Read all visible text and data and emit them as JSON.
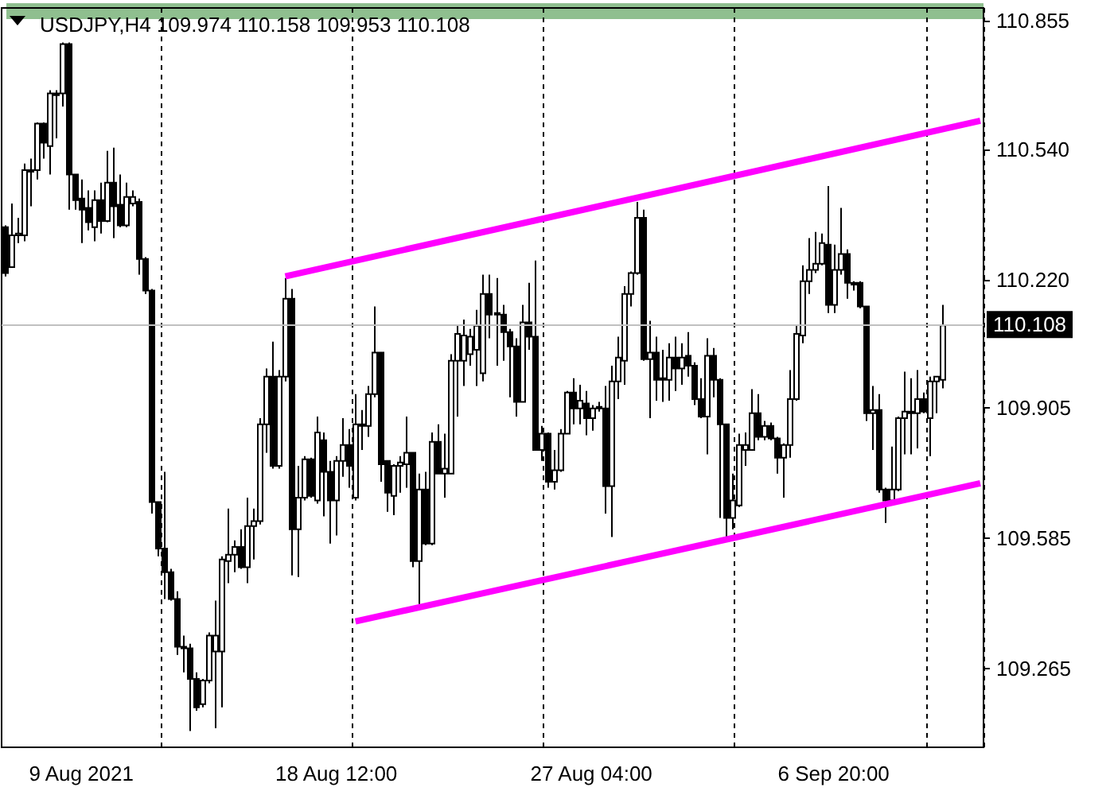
{
  "chart_data": {
    "type": "candlestick",
    "title": "USDJPY,H4 109.974 110.158 109.953 110.108",
    "categories": [
      null,
      null,
      null,
      null,
      null,
      null,
      null,
      null,
      null,
      null,
      null,
      null,
      "9 Aug 2021",
      null,
      null,
      null,
      null,
      null,
      null,
      null,
      null,
      null,
      null,
      null,
      null,
      null,
      null,
      null,
      null,
      null,
      null,
      null,
      null,
      null,
      null,
      null,
      null,
      null,
      null,
      null,
      null,
      null,
      null,
      null,
      null,
      null,
      null,
      null,
      null,
      null,
      null,
      null,
      "18 Aug 12:00",
      null,
      null,
      null,
      null,
      null,
      null,
      null,
      null,
      null,
      null,
      null,
      null,
      null,
      null,
      null,
      null,
      null,
      null,
      null,
      null,
      null,
      null,
      null,
      null,
      null,
      null,
      null,
      null,
      null,
      null,
      null,
      null,
      null,
      null,
      null,
      null,
      null,
      null,
      null,
      "27 Aug 04:00",
      null,
      null,
      null,
      null,
      null,
      null,
      null,
      null,
      null,
      null,
      null,
      null,
      null,
      null,
      null,
      null,
      null,
      null,
      null,
      null,
      null,
      null,
      null,
      null,
      null,
      null,
      null,
      null,
      null,
      null,
      null,
      null,
      null,
      null,
      null,
      null,
      null,
      "6 Sep 20:00",
      null,
      null,
      null,
      null,
      null,
      null,
      null,
      null,
      null,
      null,
      null,
      null,
      null,
      null,
      null,
      null,
      null,
      null,
      null,
      null,
      null,
      null,
      null
    ],
    "ohlc": [
      [
        110.349,
        110.353,
        110.228,
        110.236
      ],
      [
        110.251,
        110.407,
        110.251,
        110.329
      ],
      [
        110.329,
        110.372,
        110.31,
        110.333
      ],
      [
        110.329,
        110.505,
        110.314,
        110.489
      ],
      [
        110.489,
        110.517,
        110.4,
        110.485
      ],
      [
        110.489,
        110.606,
        110.466,
        110.603
      ],
      [
        110.603,
        110.606,
        110.517,
        110.556
      ],
      [
        110.548,
        110.685,
        110.478,
        110.677
      ],
      [
        110.677,
        110.685,
        110.567,
        110.673
      ],
      [
        110.677,
        110.802,
        110.645,
        110.798
      ],
      [
        110.798,
        110.802,
        110.392,
        110.478
      ],
      [
        110.478,
        110.478,
        110.392,
        110.415
      ],
      [
        110.419,
        110.466,
        110.31,
        110.392
      ],
      [
        110.396,
        110.439,
        110.341,
        110.361
      ],
      [
        110.349,
        110.439,
        110.314,
        110.415
      ],
      [
        110.415,
        110.458,
        110.333,
        110.364
      ],
      [
        110.364,
        110.536,
        110.361,
        110.458
      ],
      [
        110.458,
        110.544,
        110.322,
        110.4
      ],
      [
        110.404,
        110.478,
        110.349,
        110.353
      ],
      [
        110.353,
        110.458,
        110.349,
        110.423
      ],
      [
        110.407,
        110.439,
        110.4,
        110.423
      ],
      [
        110.411,
        110.419,
        110.232,
        110.271
      ],
      [
        110.271,
        110.275,
        110.185,
        110.193
      ],
      [
        110.193,
        110.197,
        109.646,
        109.674
      ],
      [
        109.674,
        109.674,
        109.541,
        109.56
      ],
      [
        109.56,
        109.748,
        109.436,
        109.502
      ],
      [
        109.502,
        109.51,
        109.432,
        109.436
      ],
      [
        109.436,
        109.455,
        109.299,
        109.319
      ],
      [
        109.315,
        109.346,
        109.256,
        109.319
      ],
      [
        109.315,
        109.326,
        109.112,
        109.24
      ],
      [
        109.24,
        109.256,
        109.162,
        109.17
      ],
      [
        109.178,
        109.24,
        109.17,
        109.236
      ],
      [
        109.236,
        109.354,
        109.229,
        109.346
      ],
      [
        109.307,
        109.432,
        109.119,
        109.346
      ],
      [
        109.307,
        109.541,
        109.17,
        109.533
      ],
      [
        109.529,
        109.658,
        109.475,
        109.545
      ],
      [
        109.545,
        109.58,
        109.502,
        109.564
      ],
      [
        109.564,
        109.607,
        109.51,
        109.514
      ],
      [
        109.514,
        109.685,
        109.475,
        109.615
      ],
      [
        109.615,
        109.658,
        109.533,
        109.627
      ],
      [
        109.627,
        109.88,
        109.619,
        109.865
      ],
      [
        109.865,
        110.002,
        109.795,
        109.982
      ],
      [
        109.982,
        110.068,
        109.756,
        109.763
      ],
      [
        109.763,
        109.998,
        109.756,
        109.982
      ],
      [
        109.982,
        110.224,
        109.97,
        110.173
      ],
      [
        110.173,
        110.197,
        109.494,
        109.607
      ],
      [
        109.607,
        109.763,
        109.49,
        109.685
      ],
      [
        109.685,
        109.787,
        109.678,
        109.779
      ],
      [
        109.779,
        109.783,
        109.685,
        109.689
      ],
      [
        109.678,
        109.884,
        109.67,
        109.845
      ],
      [
        109.826,
        109.845,
        109.639,
        109.748
      ],
      [
        109.748,
        109.775,
        109.572,
        109.678
      ],
      [
        109.678,
        109.787,
        109.592,
        109.775
      ],
      [
        109.775,
        109.88,
        109.736,
        109.814
      ],
      [
        109.814,
        109.853,
        109.709,
        109.763
      ],
      [
        109.685,
        109.939,
        109.678,
        109.865
      ],
      [
        109.861,
        109.9,
        109.802,
        109.865
      ],
      [
        109.861,
        109.959,
        109.834,
        109.939
      ],
      [
        109.939,
        110.154,
        109.931,
        110.041
      ],
      [
        110.041,
        110.041,
        109.724,
        109.767
      ],
      [
        109.775,
        109.775,
        109.65,
        109.697
      ],
      [
        109.689,
        109.767,
        109.642,
        109.763
      ],
      [
        109.763,
        109.787,
        109.697,
        109.771
      ],
      [
        109.767,
        109.884,
        109.709,
        109.795
      ],
      [
        109.795,
        109.795,
        109.514,
        109.529
      ],
      [
        109.529,
        109.744,
        109.424,
        109.705
      ],
      [
        109.705,
        109.748,
        109.568,
        109.572
      ],
      [
        109.572,
        109.845,
        109.568,
        109.822
      ],
      [
        109.822,
        109.865,
        109.744,
        109.744
      ],
      [
        109.744,
        109.842,
        109.685,
        109.756
      ],
      [
        109.744,
        110.037,
        109.744,
        110.021
      ],
      [
        110.021,
        110.107,
        109.884,
        110.087
      ],
      [
        110.021,
        110.122,
        109.959,
        110.083
      ],
      [
        110.037,
        110.099,
        110.009,
        110.08
      ],
      [
        110.048,
        110.146,
        109.959,
        110.107
      ],
      [
        109.99,
        110.232,
        109.97,
        110.185
      ],
      [
        110.185,
        110.232,
        110.076,
        110.134
      ],
      [
        110.138,
        110.224,
        110.009,
        110.134
      ],
      [
        110.134,
        110.158,
        110.021,
        110.091
      ],
      [
        110.091,
        110.099,
        109.931,
        110.056
      ],
      [
        110.056,
        110.076,
        109.884,
        109.92
      ],
      [
        109.92,
        110.158,
        109.92,
        110.115
      ],
      [
        110.115,
        110.212,
        110.048,
        110.08
      ],
      [
        110.08,
        110.267,
        109.802,
        109.802
      ],
      [
        109.802,
        109.861,
        109.775,
        109.842
      ],
      [
        109.842,
        109.845,
        109.709,
        109.724
      ],
      [
        109.724,
        109.802,
        109.705,
        109.752
      ],
      [
        109.752,
        109.853,
        109.748,
        109.842
      ],
      [
        109.842,
        109.947,
        109.842,
        109.943
      ],
      [
        109.943,
        109.978,
        109.865,
        109.904
      ],
      [
        109.904,
        109.962,
        109.865,
        109.923
      ],
      [
        109.916,
        109.947,
        109.838,
        109.88
      ],
      [
        109.88,
        109.912,
        109.849,
        109.904
      ],
      [
        109.908,
        109.92,
        109.896,
        109.904
      ],
      [
        109.904,
        109.959,
        109.646,
        109.713
      ],
      [
        109.713,
        110.009,
        109.588,
        109.97
      ],
      [
        109.97,
        110.08,
        109.927,
        110.029
      ],
      [
        110.021,
        110.204,
        109.962,
        110.185
      ],
      [
        110.185,
        110.24,
        110.154,
        110.236
      ],
      [
        110.236,
        110.411,
        110.232,
        110.372
      ],
      [
        110.372,
        110.392,
        110.021,
        110.025
      ],
      [
        110.025,
        110.119,
        109.88,
        110.041
      ],
      [
        110.041,
        110.08,
        109.923,
        109.974
      ],
      [
        109.978,
        110.048,
        109.92,
        109.974
      ],
      [
        109.974,
        110.064,
        109.923,
        110.029
      ],
      [
        110.029,
        110.08,
        109.947,
        110.002
      ],
      [
        110.002,
        110.064,
        109.962,
        110.029
      ],
      [
        110.033,
        110.091,
        109.982,
        110.009
      ],
      [
        110.009,
        110.017,
        109.912,
        109.927
      ],
      [
        109.927,
        109.978,
        109.88,
        109.884
      ],
      [
        109.884,
        110.076,
        109.791,
        110.033
      ],
      [
        110.033,
        110.052,
        109.931,
        109.974
      ],
      [
        109.974,
        109.978,
        109.635,
        109.865
      ],
      [
        109.865,
        109.865,
        109.588,
        109.635
      ],
      [
        109.635,
        109.744,
        109.607,
        109.678
      ],
      [
        109.666,
        109.842,
        109.662,
        109.814
      ],
      [
        109.802,
        109.845,
        109.763,
        109.814
      ],
      [
        109.802,
        109.951,
        109.802,
        109.892
      ],
      [
        109.892,
        109.939,
        109.826,
        109.834
      ],
      [
        109.834,
        109.873,
        109.826,
        109.861
      ],
      [
        109.861,
        109.869,
        109.826,
        109.83
      ],
      [
        109.83,
        109.834,
        109.744,
        109.783
      ],
      [
        109.783,
        109.818,
        109.685,
        109.814
      ],
      [
        109.814,
        109.998,
        109.783,
        109.927
      ],
      [
        109.927,
        110.107,
        109.923,
        110.087
      ],
      [
        110.083,
        110.255,
        110.064,
        110.216
      ],
      [
        110.216,
        110.322,
        110.185,
        110.244
      ],
      [
        110.244,
        110.337,
        110.236,
        110.259
      ],
      [
        110.259,
        110.333,
        110.255,
        110.31
      ],
      [
        110.306,
        110.45,
        110.138,
        110.158
      ],
      [
        110.158,
        110.306,
        110.138,
        110.244
      ],
      [
        110.244,
        110.396,
        110.232,
        110.283
      ],
      [
        110.283,
        110.294,
        110.173,
        110.212
      ],
      [
        110.212,
        110.216,
        110.193,
        110.208
      ],
      [
        110.212,
        110.216,
        110.15,
        110.154
      ],
      [
        110.154,
        110.154,
        109.873,
        109.892
      ],
      [
        109.892,
        109.959,
        109.802,
        109.9
      ],
      [
        109.9,
        109.939,
        109.697,
        109.705
      ],
      [
        109.705,
        109.709,
        109.623,
        109.678
      ],
      [
        109.678,
        109.81,
        109.674,
        109.705
      ],
      [
        109.705,
        109.884,
        109.701,
        109.88
      ],
      [
        109.88,
        109.994,
        109.791,
        109.896
      ],
      [
        109.892,
        109.978,
        109.791,
        109.896
      ],
      [
        109.892,
        109.998,
        109.806,
        109.927
      ],
      [
        109.927,
        109.943,
        109.892,
        109.896
      ],
      [
        109.88,
        109.982,
        109.787,
        109.97
      ],
      [
        109.97,
        109.982,
        109.892,
        109.982
      ],
      [
        109.974,
        110.158,
        109.953,
        110.108
      ],
      null,
      null,
      null,
      null,
      null,
      null
    ],
    "series": [
      {
        "type": "line",
        "color": "#ff00ff",
        "values": [
          null,
          null,
          null,
          null,
          null,
          null,
          null,
          null,
          null,
          null,
          null,
          null,
          null,
          null,
          null,
          null,
          null,
          null,
          null,
          null,
          null,
          null,
          null,
          null,
          null,
          null,
          null,
          null,
          null,
          null,
          null,
          null,
          null,
          null,
          null,
          null,
          null,
          null,
          null,
          null,
          null,
          null,
          null,
          null,
          110.228,
          null,
          null,
          null,
          null,
          null,
          null,
          null,
          null,
          null,
          null,
          null,
          null,
          null,
          null,
          null,
          null,
          null,
          null,
          null,
          null,
          null,
          null,
          null,
          null,
          null,
          null,
          null,
          null,
          null,
          null,
          null,
          null,
          null,
          null,
          null,
          null,
          null,
          null,
          null,
          null,
          null,
          null,
          null,
          null,
          null,
          null,
          null,
          null,
          null,
          null,
          null,
          null,
          null,
          null,
          null,
          null,
          null,
          null,
          null,
          null,
          null,
          null,
          null,
          null,
          null,
          null,
          null,
          null,
          null,
          null,
          null,
          null,
          null,
          null,
          null,
          null,
          null,
          null,
          null,
          null,
          null,
          null,
          null,
          null,
          null,
          null,
          null,
          null,
          null,
          null,
          null,
          null,
          null,
          null,
          null,
          null,
          null,
          null,
          null,
          null,
          null,
          null,
          null,
          null,
          null,
          null,
          null,
          null,
          110.61
        ]
      },
      {
        "type": "line",
        "color": "#ff00ff",
        "values": [
          null,
          null,
          null,
          null,
          null,
          null,
          null,
          null,
          null,
          null,
          null,
          null,
          null,
          null,
          null,
          null,
          null,
          null,
          null,
          null,
          null,
          null,
          null,
          null,
          null,
          null,
          null,
          null,
          null,
          null,
          null,
          null,
          null,
          null,
          null,
          null,
          null,
          null,
          null,
          null,
          null,
          null,
          null,
          null,
          null,
          null,
          null,
          null,
          null,
          null,
          null,
          null,
          null,
          null,
          null,
          109.381,
          null,
          null,
          null,
          null,
          null,
          null,
          null,
          null,
          null,
          null,
          null,
          null,
          null,
          null,
          null,
          null,
          null,
          null,
          null,
          null,
          null,
          null,
          null,
          null,
          null,
          null,
          null,
          null,
          null,
          null,
          null,
          null,
          null,
          null,
          null,
          null,
          null,
          null,
          null,
          null,
          null,
          null,
          null,
          null,
          null,
          null,
          null,
          null,
          null,
          null,
          null,
          null,
          null,
          null,
          null,
          null,
          null,
          null,
          null,
          null,
          null,
          null,
          null,
          null,
          null,
          null,
          null,
          null,
          null,
          null,
          null,
          null,
          null,
          null,
          null,
          null,
          null,
          null,
          null,
          null,
          null,
          null,
          null,
          null,
          null,
          null,
          null,
          null,
          null,
          null,
          null,
          null,
          null,
          null,
          null,
          null,
          null,
          109.72
        ]
      }
    ],
    "ylim": [
      109.072,
      110.887
    ],
    "yticks": [
      109.265,
      109.585,
      109.905,
      {
        "value": 110.22,
        "label": "110.220"
      },
      {
        "value": 110.54,
        "label": "110.540"
      },
      110.855
    ],
    "ref_lines": [
      {
        "axis": "y",
        "value": 110.108,
        "label": "110.108",
        "color": "#c0c0c0"
      }
    ],
    "grid": "x"
  }
}
